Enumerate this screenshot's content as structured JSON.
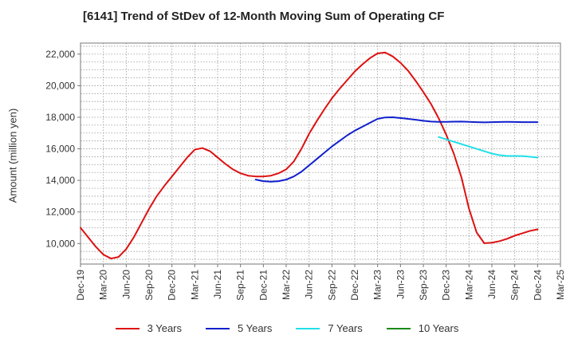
{
  "chart_data": {
    "type": "line",
    "title": "[6141]  Trend of StDev of 12-Month Moving Sum of Operating CF",
    "xlabel": "",
    "ylabel": "Amount (million yen)",
    "ylim": [
      8700,
      22700
    ],
    "y_ticks": [
      10000,
      12000,
      14000,
      16000,
      18000,
      20000,
      22000
    ],
    "y_tick_labels": [
      "10,000",
      "12,000",
      "14,000",
      "16,000",
      "18,000",
      "20,000",
      "22,000"
    ],
    "x_ticks": [
      "Dec-19",
      "Mar-20",
      "Jun-20",
      "Sep-20",
      "Dec-20",
      "Mar-21",
      "Jun-21",
      "Sep-21",
      "Dec-21",
      "Mar-22",
      "Jun-22",
      "Sep-22",
      "Dec-22",
      "Mar-23",
      "Jun-23",
      "Sep-23",
      "Dec-23",
      "Mar-24",
      "Jun-24",
      "Sep-24",
      "Dec-24",
      "Mar-25"
    ],
    "x_range_months": [
      0,
      63
    ],
    "grid": true,
    "legend_position": "bottom",
    "series": [
      {
        "name": "3 Years",
        "color": "#dd1111",
        "x": [
          "2019-12",
          "2020-01",
          "2020-02",
          "2020-03",
          "2020-04",
          "2020-05",
          "2020-06",
          "2020-07",
          "2020-08",
          "2020-09",
          "2020-10",
          "2020-11",
          "2020-12",
          "2021-01",
          "2021-02",
          "2021-03",
          "2021-04",
          "2021-05",
          "2021-06",
          "2021-07",
          "2021-08",
          "2021-09",
          "2021-10",
          "2021-11",
          "2021-12",
          "2022-01",
          "2022-02",
          "2022-03",
          "2022-04",
          "2022-05",
          "2022-06",
          "2022-07",
          "2022-08",
          "2022-09",
          "2022-10",
          "2022-11",
          "2022-12",
          "2023-01",
          "2023-02",
          "2023-03",
          "2023-04",
          "2023-05",
          "2023-06",
          "2023-07",
          "2023-08",
          "2023-09",
          "2023-10",
          "2023-11",
          "2023-12",
          "2024-01",
          "2024-02",
          "2024-03",
          "2024-04",
          "2024-05",
          "2024-06",
          "2024-07",
          "2024-08",
          "2024-09",
          "2024-10",
          "2024-11",
          "2024-12"
        ],
        "values": [
          11000,
          10400,
          9800,
          9300,
          9050,
          9150,
          9650,
          10400,
          11300,
          12200,
          13000,
          13650,
          14250,
          14850,
          15450,
          15950,
          16050,
          15850,
          15450,
          15050,
          14700,
          14450,
          14300,
          14250,
          14250,
          14300,
          14450,
          14700,
          15200,
          16000,
          16950,
          17750,
          18500,
          19200,
          19800,
          20350,
          20900,
          21350,
          21750,
          22050,
          22100,
          21850,
          21450,
          20950,
          20300,
          19600,
          18850,
          17950,
          16900,
          15700,
          14200,
          12200,
          10700,
          10020,
          10050,
          10150,
          10300,
          10500,
          10650,
          10800,
          10900
        ]
      },
      {
        "name": "5 Years",
        "color": "#1020cc",
        "x": [
          "2021-11",
          "2021-12",
          "2022-01",
          "2022-02",
          "2022-03",
          "2022-04",
          "2022-05",
          "2022-06",
          "2022-07",
          "2022-08",
          "2022-09",
          "2022-10",
          "2022-11",
          "2022-12",
          "2023-01",
          "2023-02",
          "2023-03",
          "2023-04",
          "2023-05",
          "2023-06",
          "2023-07",
          "2023-08",
          "2023-09",
          "2023-10",
          "2023-11",
          "2023-12",
          "2024-01",
          "2024-02",
          "2024-03",
          "2024-04",
          "2024-05",
          "2024-06",
          "2024-07",
          "2024-08",
          "2024-09",
          "2024-10",
          "2024-11",
          "2024-12"
        ],
        "values": [
          14050,
          13950,
          13920,
          13950,
          14050,
          14250,
          14550,
          14950,
          15350,
          15750,
          16150,
          16500,
          16850,
          17150,
          17400,
          17650,
          17900,
          17990,
          18000,
          17950,
          17900,
          17840,
          17780,
          17730,
          17710,
          17710,
          17720,
          17730,
          17710,
          17690,
          17680,
          17690,
          17700,
          17710,
          17700,
          17690,
          17690,
          17690
        ]
      },
      {
        "name": "7 Years",
        "color": "#22e0e8",
        "x": [
          "2023-11",
          "2023-12",
          "2024-01",
          "2024-02",
          "2024-03",
          "2024-04",
          "2024-05",
          "2024-06",
          "2024-07",
          "2024-08",
          "2024-09",
          "2024-10",
          "2024-11",
          "2024-12"
        ],
        "values": [
          16750,
          16600,
          16450,
          16300,
          16150,
          16000,
          15850,
          15700,
          15600,
          15550,
          15550,
          15540,
          15500,
          15450
        ]
      },
      {
        "name": "10 Years",
        "color": "#1a8a1a",
        "x": [],
        "values": []
      }
    ]
  }
}
